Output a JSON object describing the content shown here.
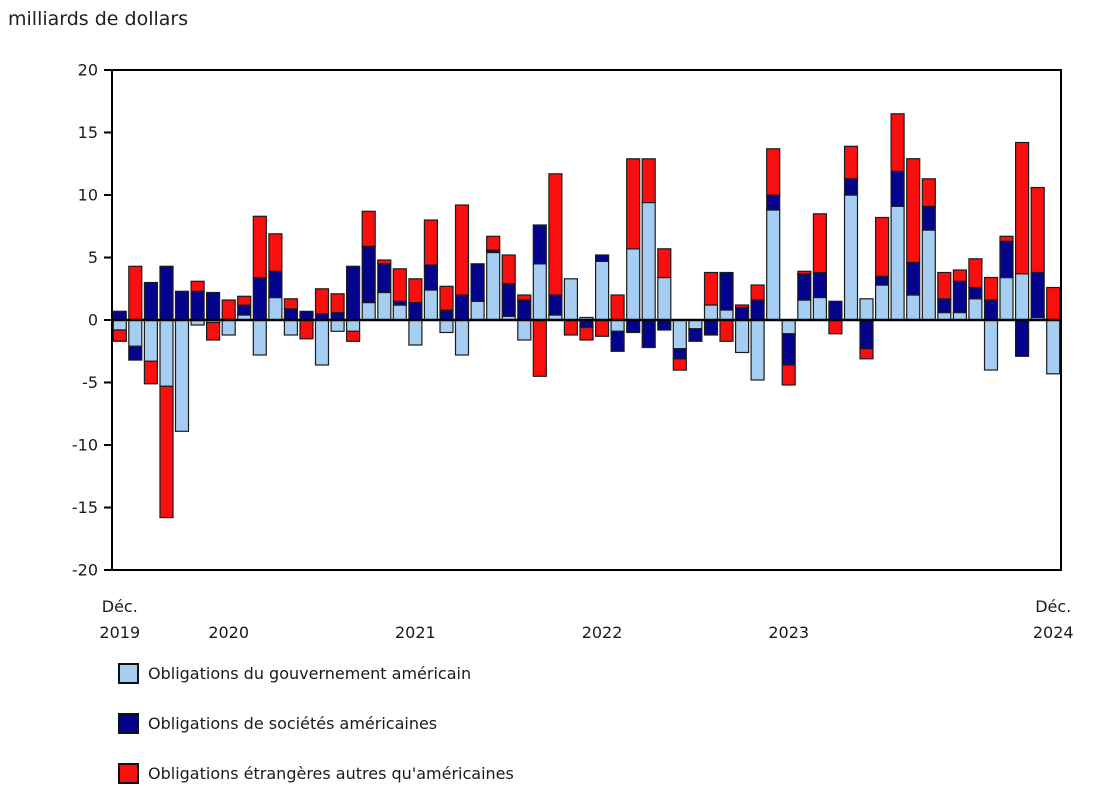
{
  "title": "milliards de dollars",
  "legend": {
    "items": [
      {
        "label": "Obligations du gouvernement américain",
        "color": "#a6cef2"
      },
      {
        "label": "Obligations de sociétés américaines",
        "color": "#03038c"
      },
      {
        "label": "Obligations étrangères autres qu'américaines",
        "color": "#fa0f0f"
      }
    ]
  },
  "chart_data": {
    "type": "bar",
    "stacked": true,
    "title": "milliards de dollars",
    "ylabel": "milliards de dollars",
    "ylim": [
      -20,
      20
    ],
    "y_ticks": [
      20,
      15,
      10,
      5,
      0,
      -5,
      -10,
      -15,
      -20
    ],
    "grid": false,
    "legend_position": "bottom-left",
    "frame_color": "#000000",
    "bar_outline_color": "#1c1c1c",
    "x_tick_labels": {
      "first": [
        "Déc.",
        "2019"
      ],
      "mid_years": [
        {
          "label": "2020",
          "month": "2020-07"
        },
        {
          "label": "2021",
          "month": "2021-07"
        },
        {
          "label": "2022",
          "month": "2022-07"
        },
        {
          "label": "2023",
          "month": "2023-07"
        }
      ],
      "last": [
        "Déc.",
        "2024"
      ]
    },
    "months": [
      "2019-12",
      "2020-01",
      "2020-02",
      "2020-03",
      "2020-04",
      "2020-05",
      "2020-06",
      "2020-07",
      "2020-08",
      "2020-09",
      "2020-10",
      "2020-11",
      "2020-12",
      "2021-01",
      "2021-02",
      "2021-03",
      "2021-04",
      "2021-05",
      "2021-06",
      "2021-07",
      "2021-08",
      "2021-09",
      "2021-10",
      "2021-11",
      "2021-12",
      "2022-01",
      "2022-02",
      "2022-03",
      "2022-04",
      "2022-05",
      "2022-06",
      "2022-07",
      "2022-08",
      "2022-09",
      "2022-10",
      "2022-11",
      "2022-12",
      "2023-01",
      "2023-02",
      "2023-03",
      "2023-04",
      "2023-05",
      "2023-06",
      "2023-07",
      "2023-08",
      "2023-09",
      "2023-10",
      "2023-11",
      "2023-12",
      "2024-01",
      "2024-02",
      "2024-03",
      "2024-04",
      "2024-05",
      "2024-06",
      "2024-07",
      "2024-08",
      "2024-09",
      "2024-10",
      "2024-11",
      "2024-12"
    ],
    "series": [
      {
        "name": "Obligations du gouvernement américain",
        "color": "#a6cef2",
        "values": [
          -0.8,
          -2.1,
          -3.3,
          -5.3,
          -8.9,
          -0.4,
          -0.2,
          -1.2,
          0.4,
          -2.8,
          1.8,
          -1.2,
          0,
          -3.6,
          -0.9,
          -0.9,
          1.4,
          2.2,
          1.2,
          -2.0,
          2.4,
          -1.0,
          -2.8,
          1.5,
          5.4,
          0.3,
          -1.6,
          4.5,
          0.4,
          3.3,
          0.2,
          4.7,
          -0.9,
          5.7,
          9.4,
          3.4,
          -2.3,
          -0.7,
          1.2,
          0.8,
          -2.6,
          -4.8,
          8.8,
          -1.1,
          1.6,
          1.8,
          0,
          10.0,
          1.7,
          2.8,
          9.1,
          2.0,
          7.2,
          0.6,
          0.6,
          1.7,
          -4.0,
          3.4,
          3.7,
          0.2,
          -4.3
        ]
      },
      {
        "name": "Obligations de sociétés américaines",
        "color": "#03038c",
        "values": [
          0.7,
          -1.1,
          3.0,
          4.3,
          2.3,
          2.3,
          2.2,
          0,
          0.8,
          3.4,
          2.1,
          0.9,
          0.7,
          0.5,
          0.6,
          4.3,
          4.5,
          2.3,
          0.3,
          1.4,
          2.0,
          0.8,
          2.0,
          3.0,
          0.2,
          2.6,
          1.6,
          3.1,
          1.6,
          0,
          -0.6,
          0.5,
          -1.6,
          -1.0,
          -2.2,
          -0.8,
          -0.8,
          -1.0,
          -1.2,
          3.0,
          1.0,
          1.6,
          1.2,
          -2.5,
          2.1,
          2.0,
          1.5,
          1.3,
          -2.3,
          0.7,
          2.8,
          2.6,
          1.9,
          1.1,
          2.5,
          0.9,
          1.6,
          2.9,
          -2.9,
          3.6,
          0
        ]
      },
      {
        "name": "Obligations étrangères autres qu'américaines",
        "color": "#fa0f0f",
        "values": [
          -0.9,
          4.3,
          -1.8,
          -10.5,
          0,
          0.8,
          -1.4,
          1.6,
          0.7,
          4.9,
          3.0,
          0.8,
          -1.5,
          2.0,
          1.5,
          -0.8,
          2.8,
          0.3,
          2.6,
          1.9,
          3.6,
          1.9,
          7.2,
          0,
          1.1,
          2.3,
          0.4,
          -4.5,
          9.7,
          -1.2,
          -1.0,
          -1.3,
          2.0,
          7.2,
          3.5,
          2.3,
          -0.9,
          0,
          2.6,
          -1.7,
          0.2,
          1.2,
          3.7,
          -1.6,
          0.2,
          4.7,
          -1.1,
          2.6,
          -0.8,
          4.7,
          4.6,
          8.3,
          2.2,
          2.1,
          0.9,
          2.3,
          1.8,
          0.4,
          10.5,
          6.8,
          2.6
        ]
      }
    ]
  }
}
